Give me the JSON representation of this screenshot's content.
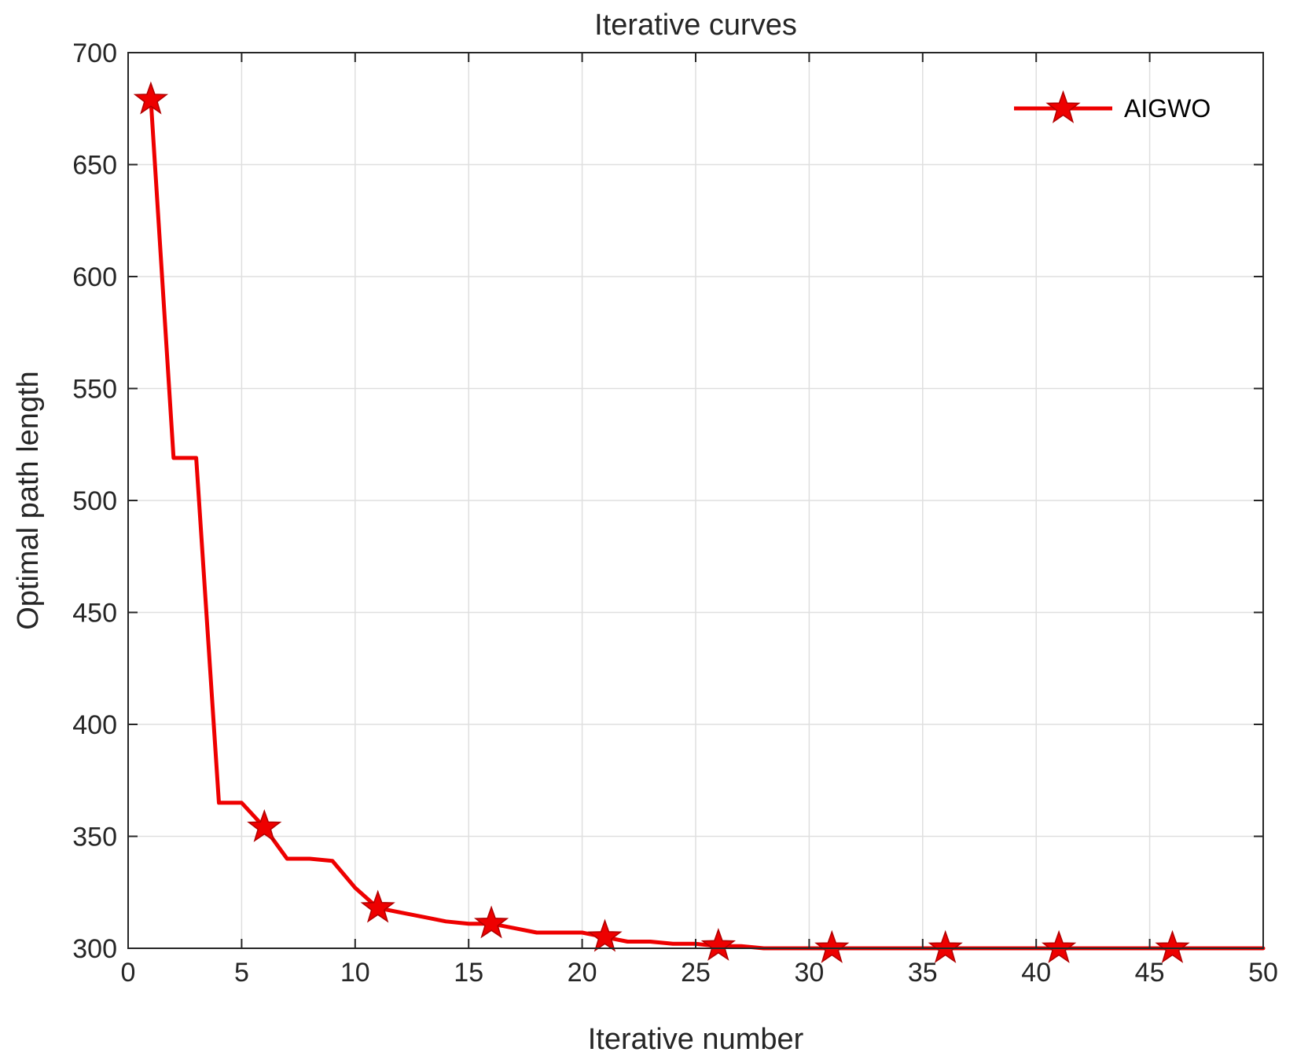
{
  "chart_data": {
    "type": "line",
    "title": "Iterative curves",
    "xlabel": "Iterative number",
    "ylabel": "Optimal path length",
    "xlim": [
      0,
      50
    ],
    "ylim": [
      300,
      700
    ],
    "xticks": [
      0,
      5,
      10,
      15,
      20,
      25,
      30,
      35,
      40,
      45,
      50
    ],
    "yticks": [
      300,
      350,
      400,
      450,
      500,
      550,
      600,
      650,
      700
    ],
    "grid": true,
    "legend_position": "top-right",
    "series": [
      {
        "name": "AIGWO",
        "color": "#ee0000",
        "marker": "star",
        "x": [
          1,
          2,
          3,
          4,
          5,
          6,
          7,
          8,
          9,
          10,
          11,
          12,
          13,
          14,
          15,
          16,
          17,
          18,
          19,
          20,
          21,
          22,
          23,
          24,
          25,
          26,
          27,
          28,
          29,
          30,
          31,
          32,
          33,
          34,
          35,
          36,
          37,
          38,
          39,
          40,
          41,
          42,
          43,
          44,
          45,
          46,
          47,
          48,
          49,
          50
        ],
        "y": [
          679,
          519,
          519,
          365,
          365,
          354,
          340,
          340,
          339,
          327,
          318,
          316,
          314,
          312,
          311,
          311,
          309,
          307,
          307,
          307,
          305,
          303,
          303,
          302,
          302,
          301,
          301,
          300,
          300,
          300,
          300,
          300,
          300,
          300,
          300,
          300,
          300,
          300,
          300,
          300,
          300,
          300,
          300,
          300,
          300,
          300,
          300,
          300,
          300,
          300
        ],
        "marker_x": [
          1,
          6,
          11,
          16,
          21,
          26,
          31,
          36,
          41,
          46
        ]
      }
    ]
  }
}
